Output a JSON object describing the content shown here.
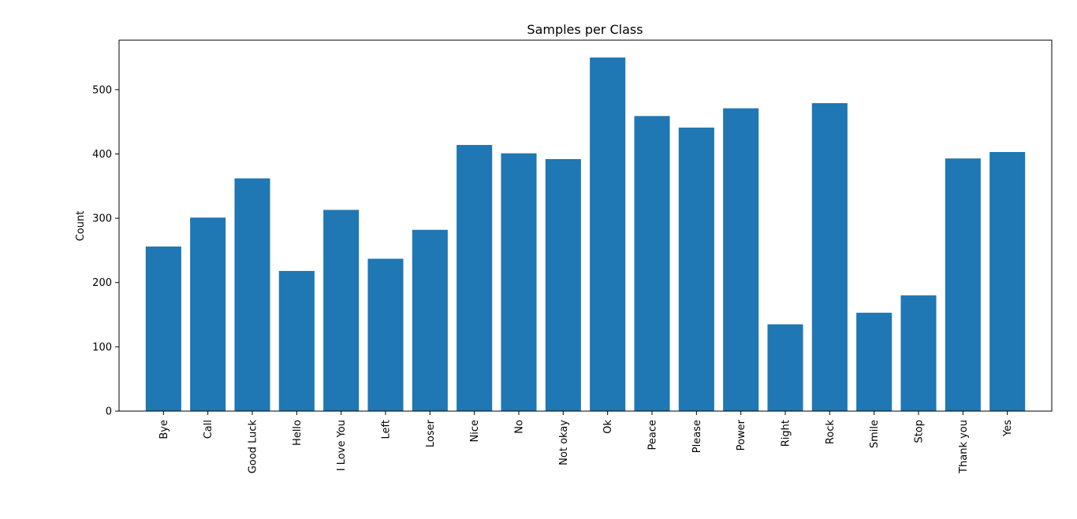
{
  "chart_data": {
    "type": "bar",
    "title": "Samples per Class",
    "xlabel": "",
    "ylabel": "Count",
    "categories": [
      "Bye",
      "Call",
      "Good Luck",
      "Hello",
      "I Love You",
      "Left",
      "Loser",
      "Nice",
      "No",
      "Not okay",
      "Ok",
      "Peace",
      "Please",
      "Power",
      "Right",
      "Rock",
      "Smile",
      "Stop",
      "Thank you",
      "Yes"
    ],
    "values": [
      256,
      301,
      362,
      218,
      313,
      237,
      282,
      414,
      401,
      392,
      550,
      459,
      441,
      471,
      135,
      479,
      153,
      180,
      393,
      403
    ],
    "ylim": [
      0,
      577
    ],
    "yticks": [
      0,
      100,
      200,
      300,
      400,
      500
    ],
    "bar_color": "#1f77b4",
    "grid": false,
    "legend": false
  }
}
